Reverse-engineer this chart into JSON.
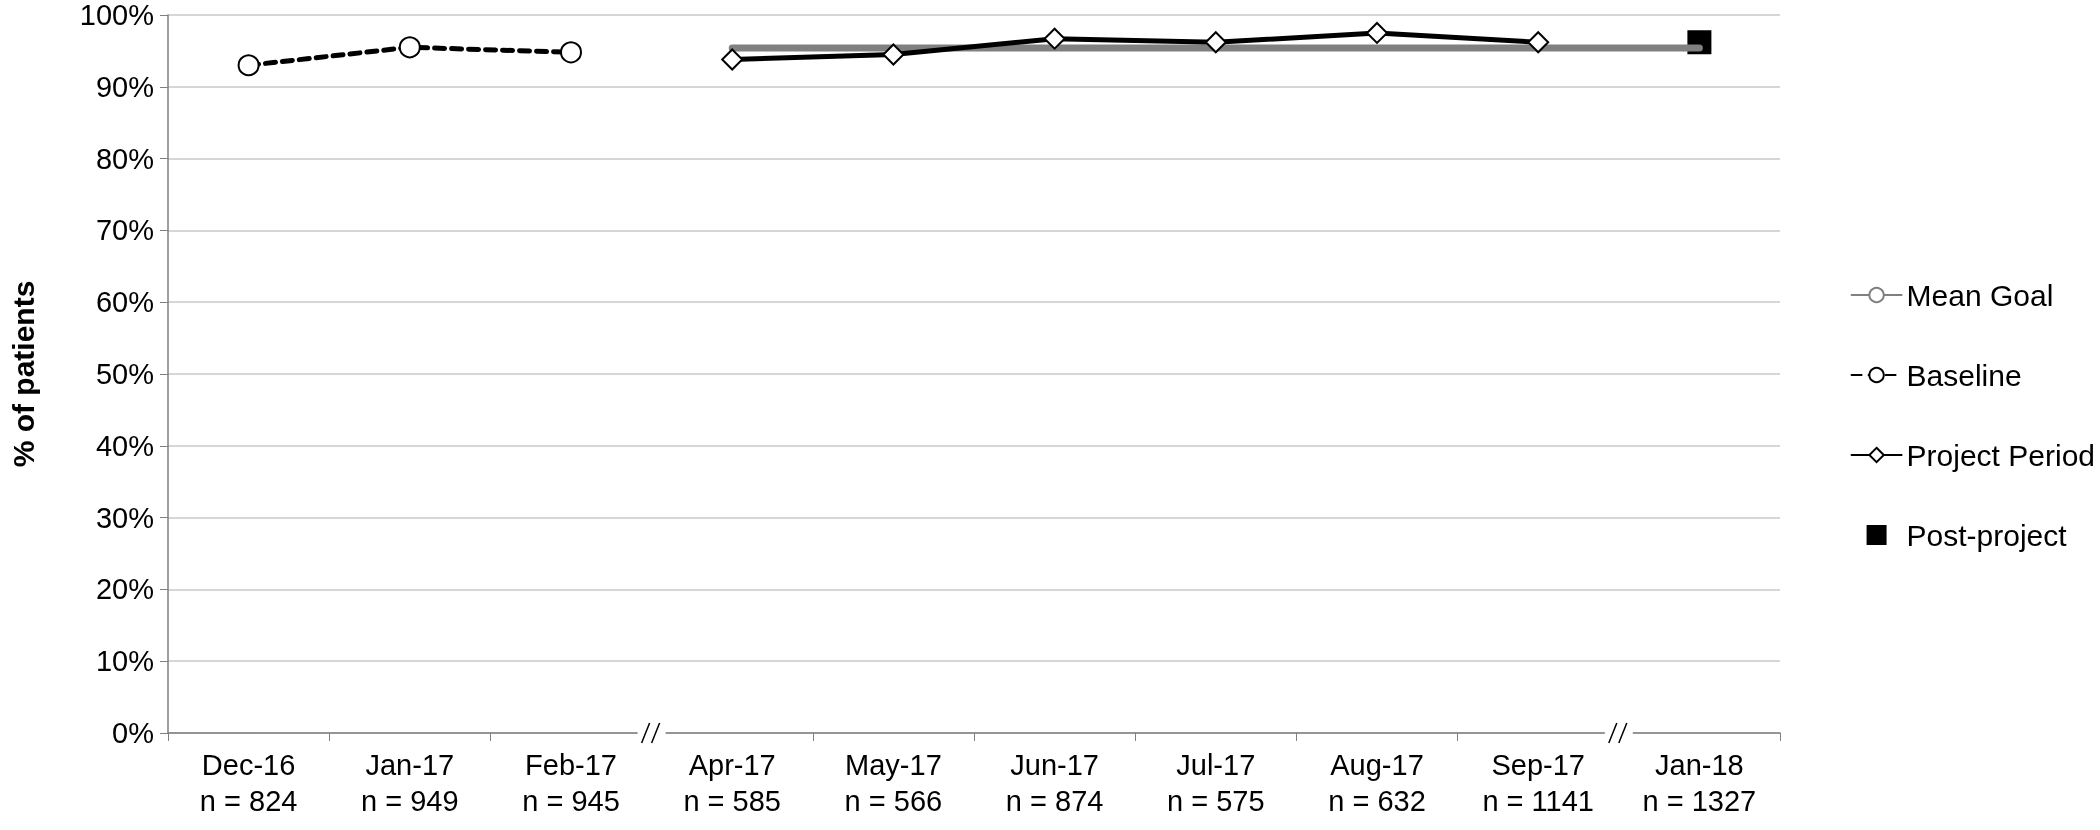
{
  "chart_data": {
    "type": "line",
    "ylabel": "% of patients",
    "categories": [
      "Dec-16\nn = 824",
      "Jan-17\nn = 949",
      "Feb-17\nn = 945",
      "Apr-17\nn = 585",
      "May-17\nn = 566",
      "Jun-17\nn = 874",
      "Jul-17\nn = 575",
      "Aug-17\nn = 632",
      "Sep-17\nn = 1141",
      "Jan-18\nn = 1327"
    ],
    "series": [
      {
        "name": "Mean Goal",
        "color": "#808080",
        "marker": "none",
        "line_style": "solid",
        "values": [
          null,
          null,
          null,
          95.4,
          95.4,
          95.4,
          95.4,
          95.4,
          95.4,
          95.4
        ]
      },
      {
        "name": "Baseline",
        "color": "#000000",
        "marker": "circle",
        "line_style": "dashed",
        "values": [
          93.0,
          95.5,
          94.8,
          null,
          null,
          null,
          null,
          null,
          null,
          null
        ]
      },
      {
        "name": "Project Period",
        "color": "#000000",
        "marker": "diamond",
        "line_style": "solid",
        "values": [
          null,
          null,
          null,
          93.8,
          94.5,
          96.7,
          96.2,
          97.5,
          96.2,
          null
        ]
      },
      {
        "name": "Post-project",
        "type": "scatter",
        "color": "#000000",
        "marker": "square",
        "values": [
          null,
          null,
          null,
          null,
          null,
          null,
          null,
          null,
          null,
          96.2
        ]
      }
    ],
    "ylim": [
      0,
      100
    ],
    "yticks": [
      {
        "value": 0,
        "label": "0%"
      },
      {
        "value": 10,
        "label": "10%"
      },
      {
        "value": 20,
        "label": "20%"
      },
      {
        "value": 30,
        "label": "30%"
      },
      {
        "value": 40,
        "label": "40%"
      },
      {
        "value": 50,
        "label": "50%"
      },
      {
        "value": 60,
        "label": "60%"
      },
      {
        "value": 70,
        "label": "70%"
      },
      {
        "value": 80,
        "label": "80%"
      },
      {
        "value": 90,
        "label": "90%"
      },
      {
        "value": 100,
        "label": "100%"
      }
    ],
    "grid": "y",
    "legend": "right"
  }
}
